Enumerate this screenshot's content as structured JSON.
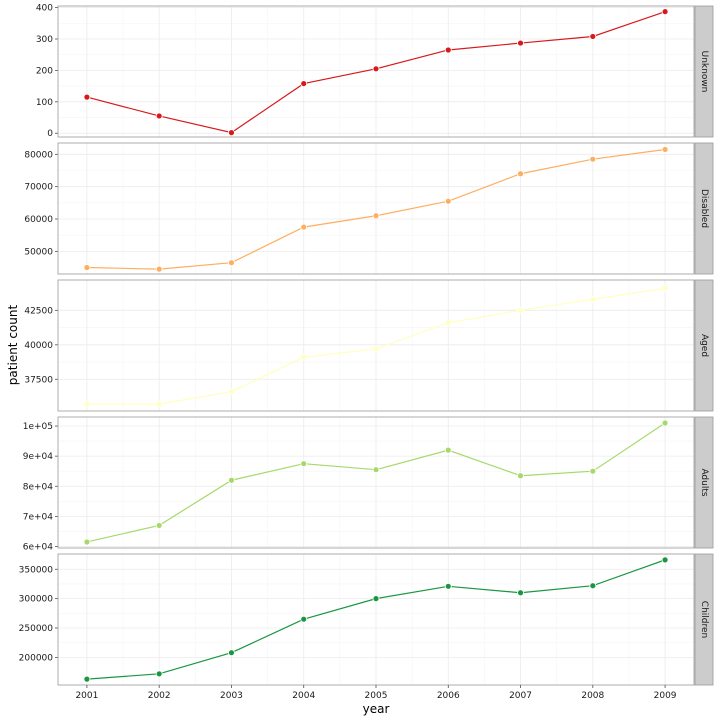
{
  "chart_data": {
    "type": "line",
    "facet": "vertical",
    "x": [
      2001,
      2002,
      2003,
      2004,
      2005,
      2006,
      2007,
      2008,
      2009
    ],
    "xlabel": "year",
    "ylabel": "patient count",
    "grid": true,
    "series": [
      {
        "name": "Unknown",
        "color": "#d7191c",
        "values": [
          115,
          55,
          2,
          158,
          205,
          265,
          287,
          308,
          387
        ],
        "ylim": [
          -12,
          405
        ],
        "yticks": [
          0,
          100,
          200,
          300,
          400
        ],
        "ytick_labels": [
          "0",
          "100",
          "200",
          "300",
          "400"
        ]
      },
      {
        "name": "Disabled",
        "color": "#fdae61",
        "values": [
          45000,
          44500,
          46500,
          57500,
          61000,
          65500,
          74000,
          78500,
          81500
        ],
        "ylim": [
          43000,
          83500
        ],
        "yticks": [
          50000,
          60000,
          70000,
          80000
        ],
        "ytick_labels": [
          "50000",
          "60000",
          "70000",
          "80000"
        ]
      },
      {
        "name": "Aged",
        "color": "#ffffbf",
        "values": [
          35700,
          35700,
          36600,
          39100,
          39700,
          41600,
          42500,
          43300,
          44100
        ],
        "ylim": [
          35200,
          44700
        ],
        "yticks": [
          37500,
          40000,
          42500
        ],
        "ytick_labels": [
          "37500",
          "40000",
          "42500"
        ]
      },
      {
        "name": "Adults",
        "color": "#a6d96a",
        "values": [
          61500,
          67000,
          82000,
          87500,
          85500,
          92000,
          83500,
          85000,
          101000
        ],
        "ylim": [
          59500,
          103000
        ],
        "yticks": [
          60000,
          70000,
          80000,
          90000,
          100000
        ],
        "ytick_labels": [
          "6e+04",
          "7e+04",
          "8e+04",
          "9e+04",
          "1e+05"
        ]
      },
      {
        "name": "Children",
        "color": "#1a9641",
        "values": [
          163000,
          172000,
          208000,
          265000,
          300000,
          321000,
          310000,
          322000,
          366000
        ],
        "ylim": [
          153000,
          376000
        ],
        "yticks": [
          200000,
          250000,
          300000,
          350000
        ],
        "ytick_labels": [
          "200000",
          "250000",
          "300000",
          "350000"
        ]
      }
    ]
  }
}
